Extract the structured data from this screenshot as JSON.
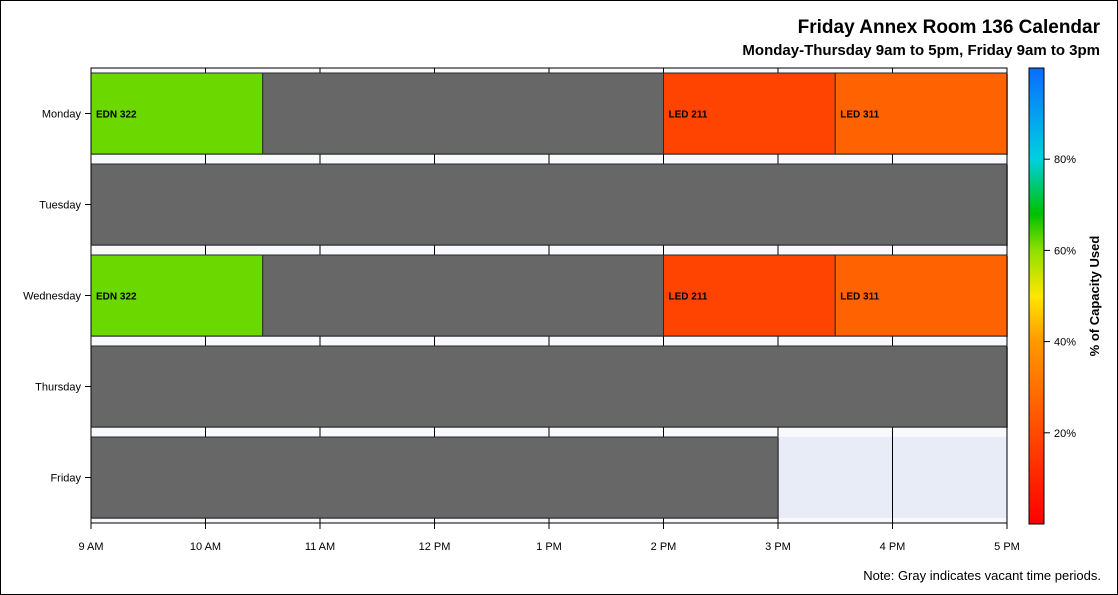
{
  "chart_data": {
    "type": "bar",
    "orientation": "horizontal-timeline",
    "title": "Friday Annex Room 136 Calendar",
    "subtitle": "Monday-Thursday 9am to 5pm, Friday 9am to 3pm",
    "note": "Note: Gray indicates vacant time periods.",
    "days": [
      "Monday",
      "Tuesday",
      "Wednesday",
      "Thursday",
      "Friday"
    ],
    "x_ticks": [
      {
        "hour": 9,
        "label": "9 AM"
      },
      {
        "hour": 10,
        "label": "10 AM"
      },
      {
        "hour": 11,
        "label": "11 AM"
      },
      {
        "hour": 12,
        "label": "12 PM"
      },
      {
        "hour": 13,
        "label": "1 PM"
      },
      {
        "hour": 14,
        "label": "2 PM"
      },
      {
        "hour": 15,
        "label": "3 PM"
      },
      {
        "hour": 16,
        "label": "4 PM"
      },
      {
        "hour": 17,
        "label": "5 PM"
      }
    ],
    "xlim": [
      9,
      17
    ],
    "vacant_color": "#676767",
    "segments": [
      {
        "day": "Monday",
        "start": 9,
        "end": 10.5,
        "label": "EDN 322",
        "capacity_pct": 62
      },
      {
        "day": "Monday",
        "start": 10.5,
        "end": 14,
        "label": "",
        "vacant": true
      },
      {
        "day": "Monday",
        "start": 14,
        "end": 15.5,
        "label": "LED 211",
        "capacity_pct": 18
      },
      {
        "day": "Monday",
        "start": 15.5,
        "end": 17,
        "label": "LED 311",
        "capacity_pct": 26
      },
      {
        "day": "Tuesday",
        "start": 9,
        "end": 17,
        "label": "",
        "vacant": true
      },
      {
        "day": "Wednesday",
        "start": 9,
        "end": 10.5,
        "label": "EDN 322",
        "capacity_pct": 62
      },
      {
        "day": "Wednesday",
        "start": 10.5,
        "end": 14,
        "label": "",
        "vacant": true
      },
      {
        "day": "Wednesday",
        "start": 14,
        "end": 15.5,
        "label": "LED 211",
        "capacity_pct": 18
      },
      {
        "day": "Wednesday",
        "start": 15.5,
        "end": 17,
        "label": "LED 311",
        "capacity_pct": 26
      },
      {
        "day": "Thursday",
        "start": 9,
        "end": 17,
        "label": "",
        "vacant": true
      },
      {
        "day": "Friday",
        "start": 9,
        "end": 15,
        "label": "",
        "vacant": true
      }
    ],
    "colorbar": {
      "title": "% of Capacity Used",
      "range": [
        0,
        100
      ],
      "ticks": [
        {
          "value": 20,
          "label": "20%"
        },
        {
          "value": 40,
          "label": "40%"
        },
        {
          "value": 60,
          "label": "60%"
        },
        {
          "value": 80,
          "label": "80%"
        }
      ],
      "stops": [
        {
          "value": 0,
          "color": "#ff0000"
        },
        {
          "value": 20,
          "color": "#ff4a00"
        },
        {
          "value": 40,
          "color": "#ff9900"
        },
        {
          "value": 50,
          "color": "#ffe600"
        },
        {
          "value": 60,
          "color": "#8fe000"
        },
        {
          "value": 68,
          "color": "#00c000"
        },
        {
          "value": 80,
          "color": "#00d0e0"
        },
        {
          "value": 100,
          "color": "#0a6cff"
        }
      ]
    },
    "background_color": "#e8ecf6",
    "grid": true
  }
}
